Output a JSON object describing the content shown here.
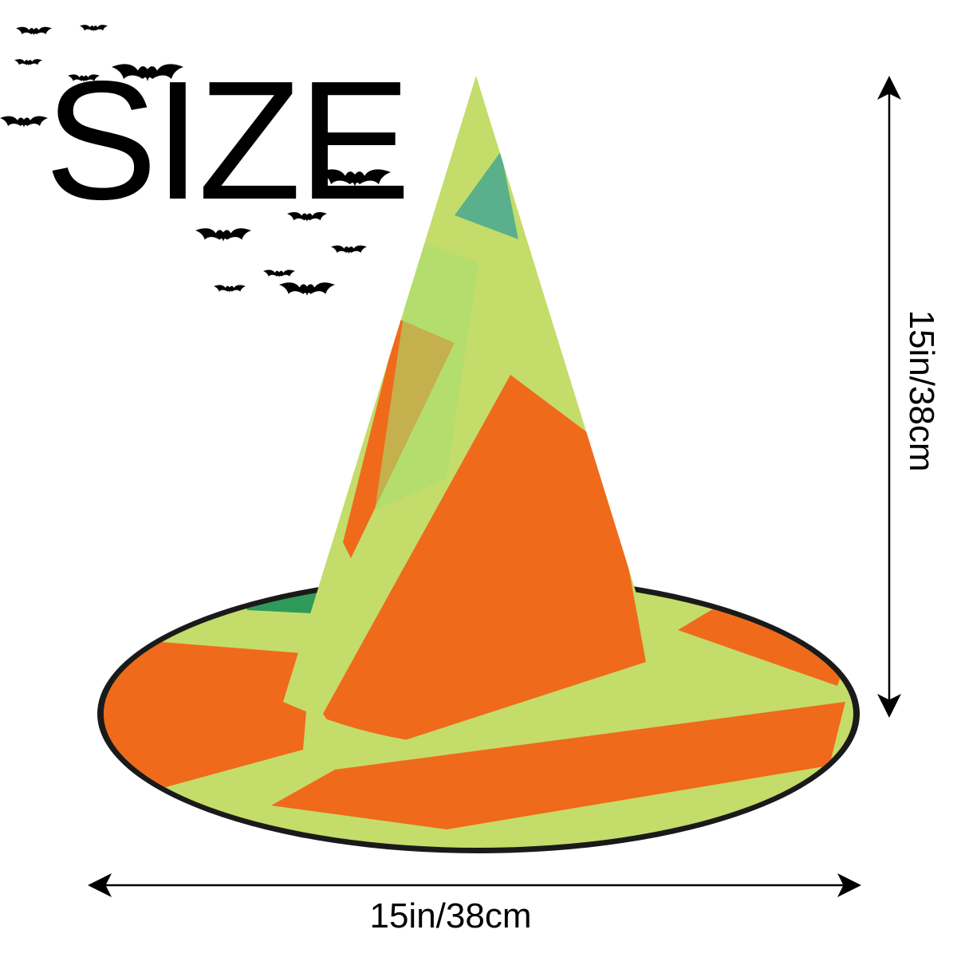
{
  "title": "SIZE",
  "dimensions": {
    "height_label": "15in/38cm",
    "width_label": "15in/38cm"
  },
  "colors": {
    "hat_green": "#c4dc6a",
    "hat_orange": "#f06a1c",
    "brim_edge": "#1a1a1a",
    "accent_green": "#2e9a5a"
  }
}
